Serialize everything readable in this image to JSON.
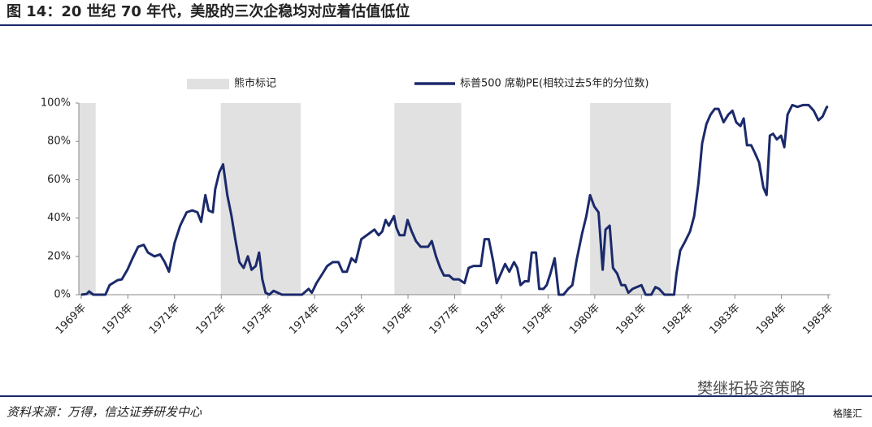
{
  "header": {
    "title": "图 14：20 世纪 70 年代，美股的三次企稳均对应着估值低位"
  },
  "chart_data": {
    "type": "line",
    "x": [
      1969.0,
      1969.12,
      1969.17,
      1969.26,
      1969.52,
      1969.61,
      1969.78,
      1969.87,
      1969.99,
      1970.1,
      1970.22,
      1970.34,
      1970.43,
      1970.57,
      1970.69,
      1970.79,
      1970.88,
      1971.0,
      1971.12,
      1971.26,
      1971.38,
      1971.49,
      1971.57,
      1971.66,
      1971.73,
      1971.82,
      1971.87,
      1971.96,
      1972.04,
      1972.13,
      1972.22,
      1972.3,
      1972.39,
      1972.48,
      1972.57,
      1972.65,
      1972.74,
      1972.81,
      1972.88,
      1972.95,
      1973.03,
      1973.12,
      1973.21,
      1973.3,
      1973.73,
      1973.87,
      1973.94,
      1974.04,
      1974.17,
      1974.27,
      1974.39,
      1974.51,
      1974.6,
      1974.69,
      1974.79,
      1974.88,
      1975.0,
      1975.17,
      1975.28,
      1975.37,
      1975.45,
      1975.52,
      1975.59,
      1975.7,
      1975.75,
      1975.82,
      1975.92,
      1975.99,
      1976.08,
      1976.17,
      1976.27,
      1976.43,
      1976.51,
      1976.6,
      1976.69,
      1976.77,
      1976.88,
      1976.97,
      1977.09,
      1977.21,
      1977.3,
      1977.4,
      1977.56,
      1977.64,
      1977.73,
      1977.82,
      1977.9,
      1977.99,
      1978.08,
      1978.17,
      1978.27,
      1978.34,
      1978.41,
      1978.5,
      1978.58,
      1978.65,
      1978.74,
      1978.81,
      1978.9,
      1978.97,
      1979.05,
      1979.14,
      1979.23,
      1979.33,
      1979.43,
      1979.52,
      1979.61,
      1979.73,
      1979.82,
      1979.9,
      1979.99,
      1980.08,
      1980.17,
      1980.23,
      1980.32,
      1980.39,
      1980.48,
      1980.57,
      1980.65,
      1980.72,
      1980.81,
      1980.9,
      1981.0,
      1981.09,
      1981.21,
      1981.3,
      1981.38,
      1981.49,
      1981.7,
      1981.75,
      1981.83,
      1981.94,
      1982.04,
      1982.13,
      1982.22,
      1982.3,
      1982.39,
      1982.48,
      1982.57,
      1982.65,
      1982.76,
      1982.86,
      1982.95,
      1983.03,
      1983.12,
      1983.19,
      1983.26,
      1983.35,
      1983.43,
      1983.52,
      1983.61,
      1983.68,
      1983.75,
      1983.82,
      1983.9,
      1983.99,
      1984.06,
      1984.13,
      1984.23,
      1984.34,
      1984.46,
      1984.58,
      1984.69,
      1984.79,
      1984.88,
      1984.97,
      1985.0
    ],
    "series": [
      {
        "name": "标普500 席勒PE(相较过去5年的分位数)",
        "color": "#1b2a6b",
        "values": [
          0,
          0.4,
          1.7,
          0,
          0,
          5,
          7.6,
          8,
          13,
          19,
          25,
          26,
          22,
          20,
          21,
          17,
          12,
          27,
          36,
          43,
          44,
          43,
          38,
          52,
          44,
          43,
          55,
          64,
          68,
          52,
          41,
          29,
          17,
          14,
          20,
          13,
          15,
          22,
          8,
          1,
          0,
          2,
          1,
          0,
          0,
          3,
          1,
          6,
          11,
          15,
          17,
          17,
          12,
          12,
          19,
          17,
          29,
          32,
          34,
          31,
          33,
          39,
          36,
          41,
          35,
          31,
          31,
          39,
          33,
          28,
          25,
          25,
          28,
          20,
          14,
          10,
          10,
          8,
          8,
          6,
          14,
          15,
          15,
          29,
          29,
          18,
          6,
          11,
          16,
          12,
          17,
          14,
          5,
          7,
          7,
          22,
          22,
          3,
          3,
          5,
          11,
          19,
          0,
          0,
          3,
          5,
          18,
          32,
          41,
          52,
          46,
          43,
          13,
          34,
          36,
          14,
          11,
          5,
          5,
          1,
          3,
          4,
          5,
          0,
          0,
          4,
          3,
          0,
          0,
          11,
          23,
          28,
          33,
          41,
          58,
          79,
          89,
          94,
          97,
          97,
          90,
          94,
          96,
          90,
          88,
          92,
          78,
          78,
          74,
          69,
          56,
          52,
          83,
          84,
          81,
          83,
          77,
          94,
          99,
          98,
          99,
          99,
          96,
          91,
          93,
          98,
          98
        ]
      }
    ],
    "shading": {
      "name": "熊市标记",
      "color": "#e1e1e1",
      "ranges": [
        [
          1968.95,
          1969.31
        ],
        [
          1971.99,
          1973.7
        ],
        [
          1975.71,
          1977.14
        ],
        [
          1979.9,
          1981.63
        ]
      ]
    },
    "xlim": [
      1968.95,
      1985.05
    ],
    "xticks": [
      {
        "value": 1969,
        "label": "1969年"
      },
      {
        "value": 1970,
        "label": "1970年"
      },
      {
        "value": 1971,
        "label": "1971年"
      },
      {
        "value": 1972,
        "label": "1972年"
      },
      {
        "value": 1973,
        "label": "1973年"
      },
      {
        "value": 1974,
        "label": "1974年"
      },
      {
        "value": 1975,
        "label": "1975年"
      },
      {
        "value": 1976,
        "label": "1976年"
      },
      {
        "value": 1977,
        "label": "1977年"
      },
      {
        "value": 1978,
        "label": "1978年"
      },
      {
        "value": 1979,
        "label": "1979年"
      },
      {
        "value": 1980,
        "label": "1980年"
      },
      {
        "value": 1981,
        "label": "1981年"
      },
      {
        "value": 1982,
        "label": "1982年"
      },
      {
        "value": 1983,
        "label": "1983年"
      },
      {
        "value": 1984,
        "label": "1984年"
      },
      {
        "value": 1985,
        "label": "1985年"
      }
    ],
    "ylim": [
      0,
      100
    ],
    "yticks": [
      {
        "value": 0,
        "label": "0%"
      },
      {
        "value": 20,
        "label": "20%"
      },
      {
        "value": 40,
        "label": "40%"
      },
      {
        "value": 60,
        "label": "60%"
      },
      {
        "value": 80,
        "label": "80%"
      },
      {
        "value": 100,
        "label": "100%"
      }
    ],
    "grid": false
  },
  "footer": {
    "source": "资料来源：万得，信达证券研发中心",
    "watermark": "樊继拓投资策略",
    "logo": "格隆汇"
  }
}
